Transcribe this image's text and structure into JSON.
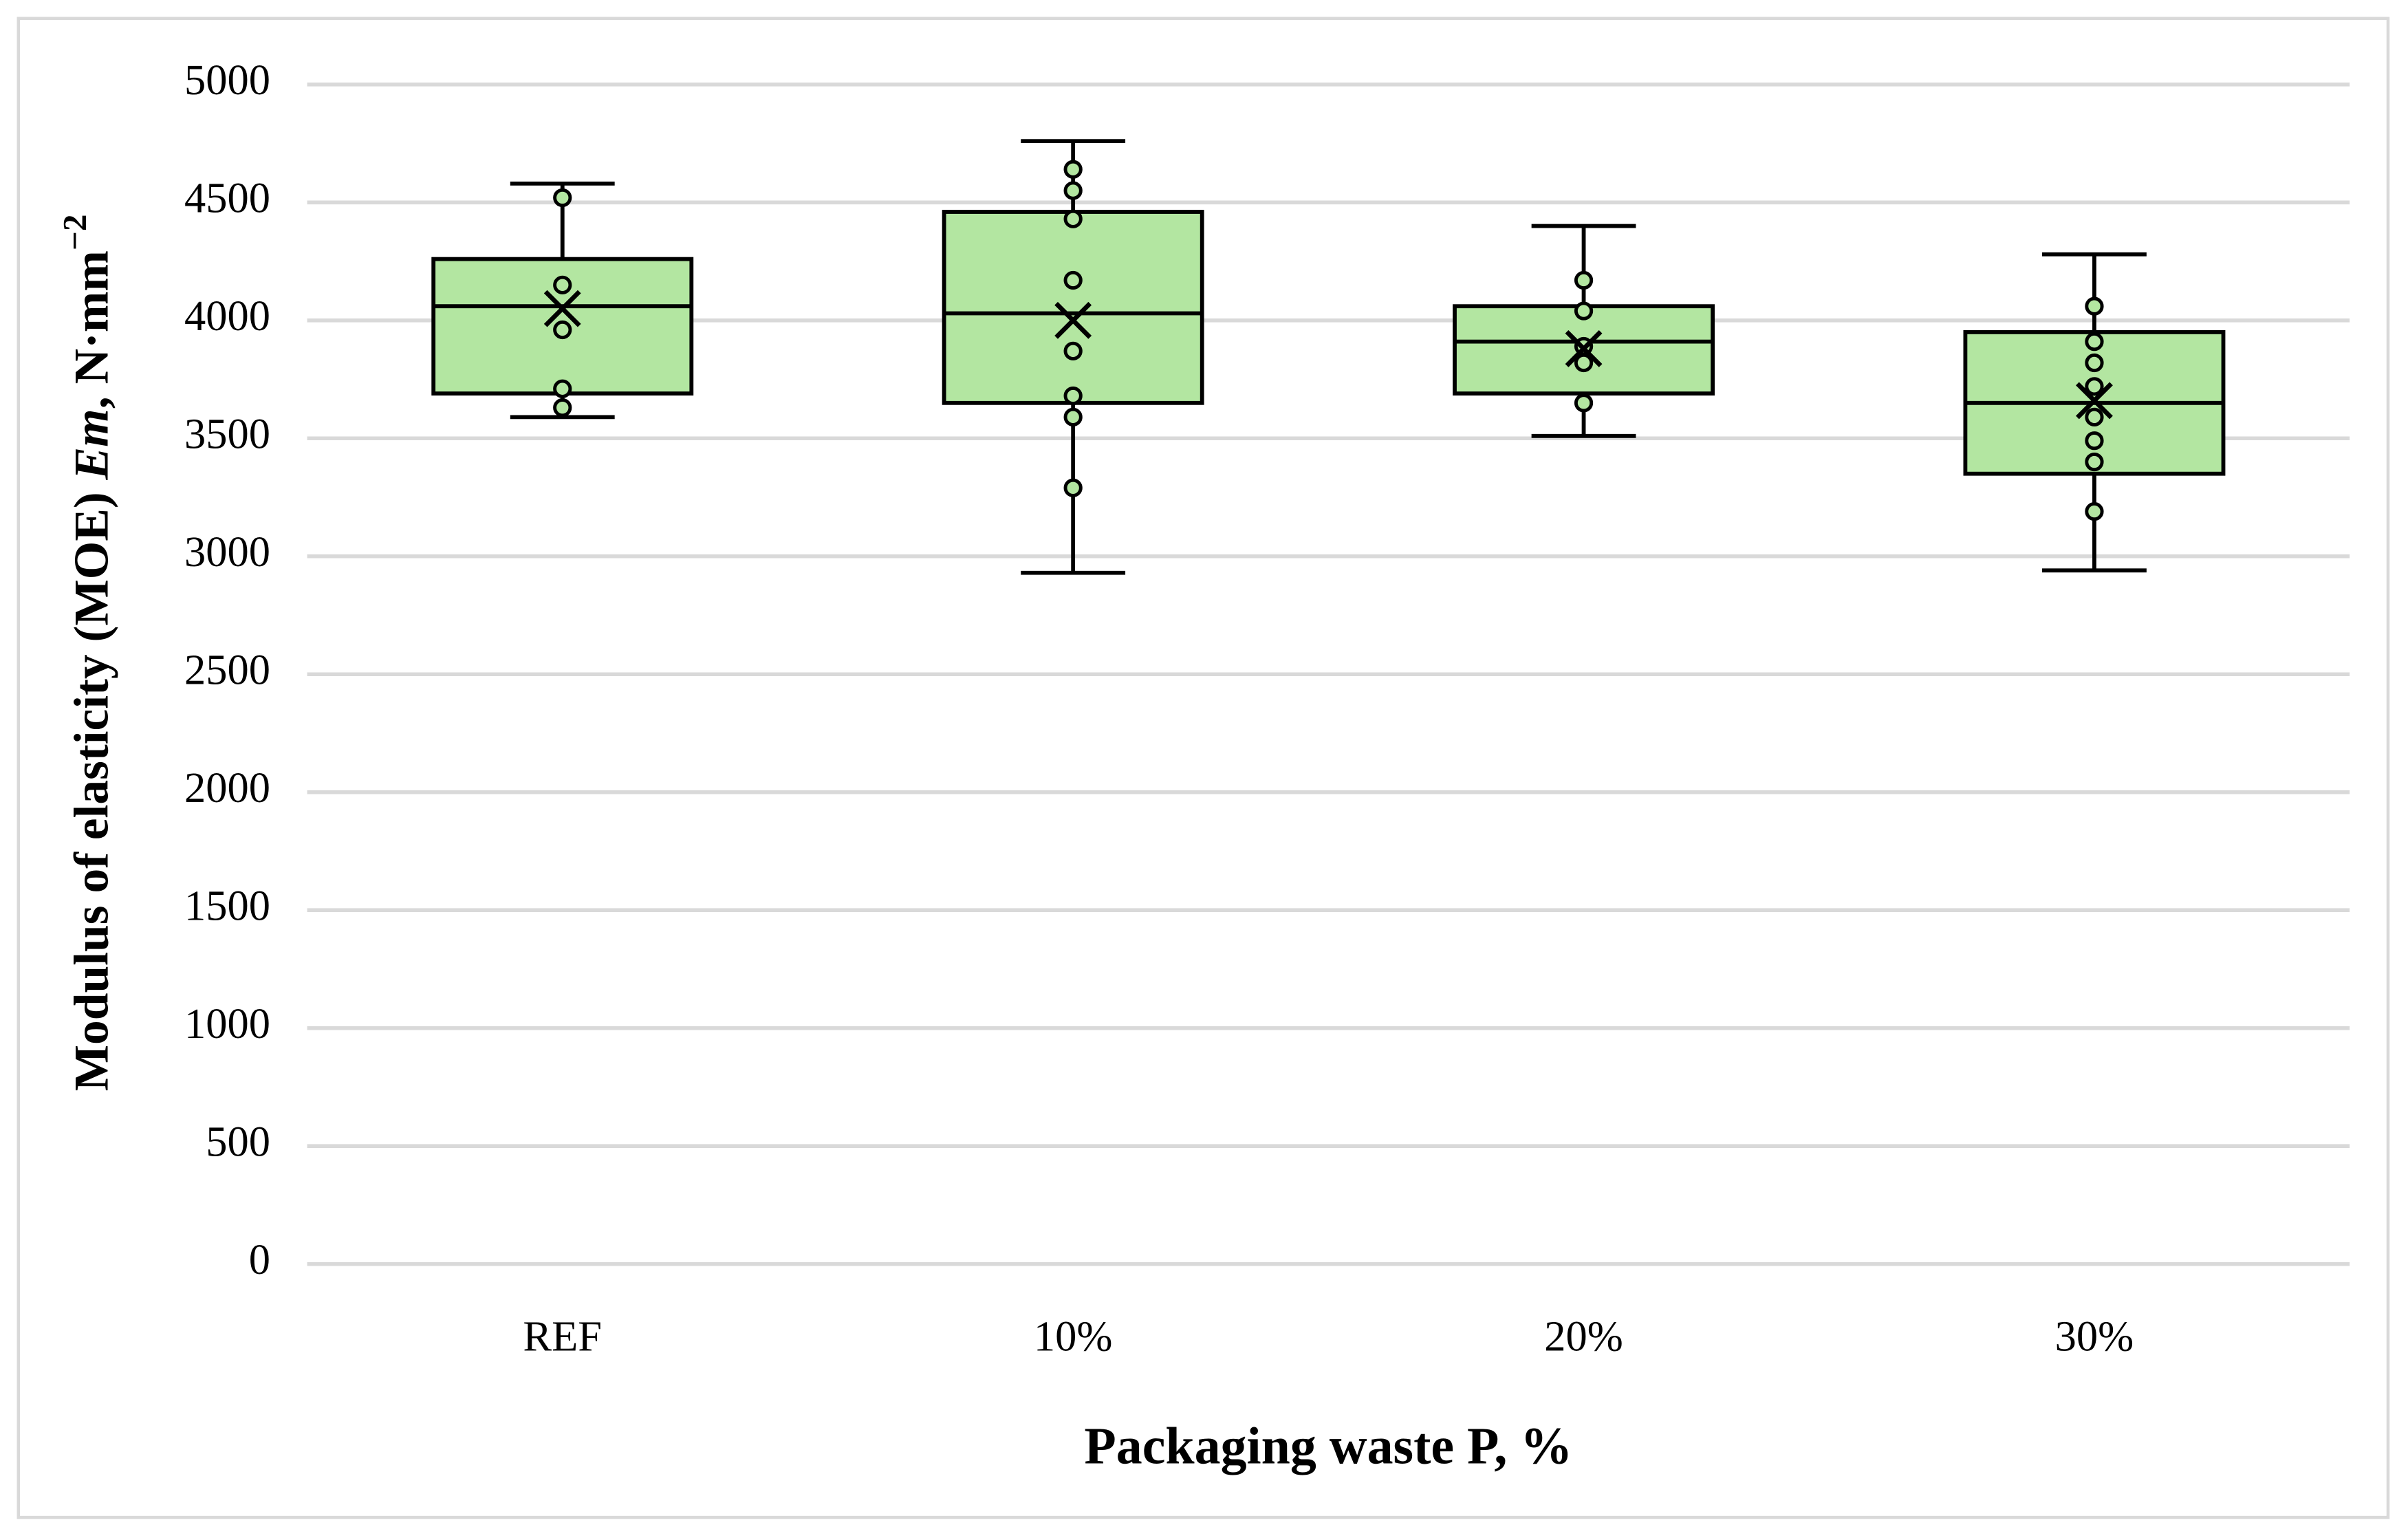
{
  "chart_data": {
    "type": "box",
    "xlabel": "Packaging waste P, %",
    "ylabel": {
      "text": "Modulus of elasticity  (MOE) ",
      "italic": "Em",
      "unit": ", N·mm",
      "exponent": "−2"
    },
    "categories": [
      "REF",
      "10%",
      "20%",
      "30%"
    ],
    "color": "#b3e6a1",
    "boxes": [
      {
        "min": 3590,
        "q1": 3690,
        "median": 4060,
        "q3": 4260,
        "max": 4580,
        "mean": 4050,
        "points": [
          4520,
          4150,
          3960,
          3710,
          3630
        ]
      },
      {
        "min": 2930,
        "q1": 3650,
        "median": 4030,
        "q3": 4460,
        "max": 4760,
        "mean": 4000,
        "points": [
          4640,
          4550,
          4430,
          4170,
          3870,
          3680,
          3590,
          3290
        ]
      },
      {
        "min": 3510,
        "q1": 3690,
        "median": 3910,
        "q3": 4060,
        "max": 4400,
        "mean": 3880,
        "points": [
          4170,
          4040,
          3890,
          3820,
          3650
        ]
      },
      {
        "min": 2940,
        "q1": 3350,
        "median": 3650,
        "q3": 3950,
        "max": 4280,
        "mean": 3660,
        "points": [
          4060,
          3910,
          3820,
          3720,
          3590,
          3490,
          3400,
          3190
        ]
      }
    ],
    "ylim": [
      0,
      5000
    ],
    "yticks": [
      0,
      500,
      1000,
      1500,
      2000,
      2500,
      3000,
      3500,
      4000,
      4500,
      5000
    ],
    "grid": true
  }
}
